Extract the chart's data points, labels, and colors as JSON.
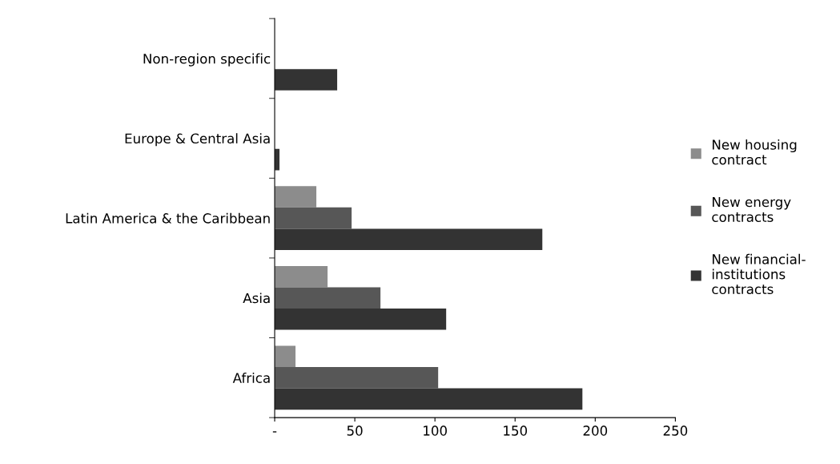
{
  "chart_data": {
    "type": "bar",
    "orientation": "horizontal",
    "categories": [
      "Non-region specific",
      "Europe & Central Asia",
      "Latin America & the Caribbean",
      "Asia",
      "Africa"
    ],
    "series": [
      {
        "name": "New housing contract",
        "color": "#8c8c8c",
        "values": [
          0,
          0,
          26,
          33,
          13
        ]
      },
      {
        "name": "New energy contracts",
        "color": "#575757",
        "values": [
          0,
          0,
          48,
          66,
          102
        ]
      },
      {
        "name": "New financial-institutions contracts",
        "color": "#333333",
        "values": [
          39,
          3,
          167,
          107,
          192
        ]
      }
    ],
    "xlim": [
      0,
      250
    ],
    "xticks": [
      {
        "value": 0,
        "label": "-"
      },
      50,
      100,
      150,
      200,
      250
    ],
    "legend": "right",
    "grid": false
  }
}
